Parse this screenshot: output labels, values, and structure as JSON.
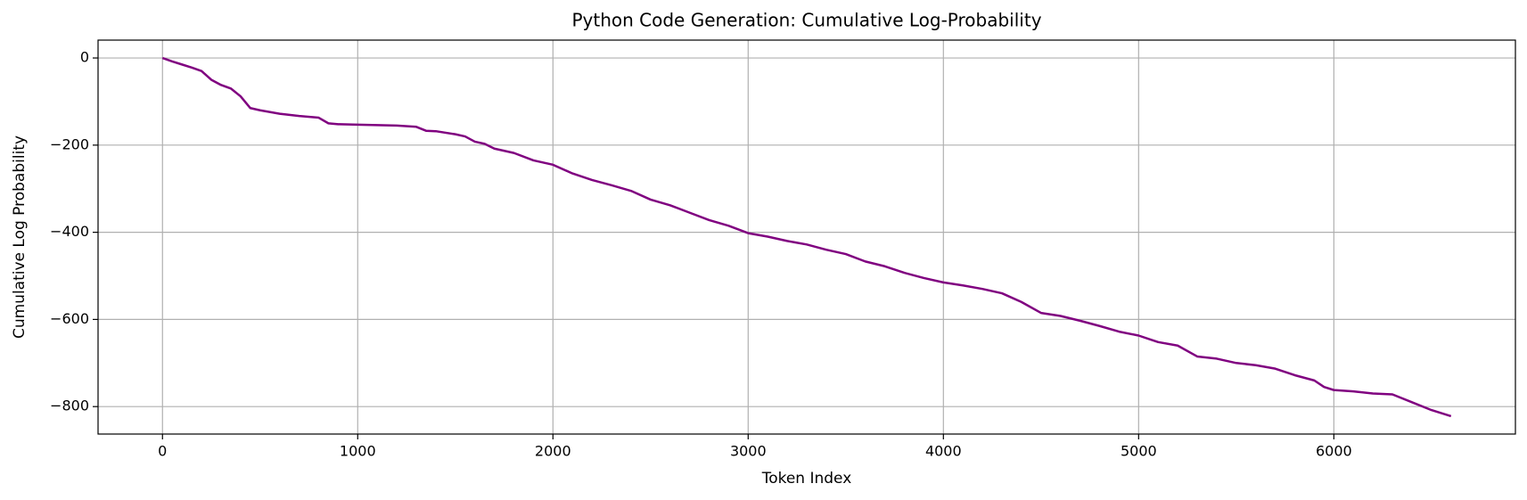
{
  "chart_data": {
    "type": "line",
    "title": "Python Code Generation: Cumulative Log-Probability",
    "xlabel": "Token Index",
    "ylabel": "Cumulative Log Probability",
    "color": "#800080",
    "grid": true,
    "xlim": [
      -330,
      6930
    ],
    "xticks": [
      0,
      1000,
      2000,
      3000,
      4000,
      5000,
      6000
    ],
    "ylim": [
      -863,
      41
    ],
    "yticks": [
      {
        "value": -800,
        "label": "−800"
      },
      {
        "value": -600,
        "label": "−600"
      },
      {
        "value": -400,
        "label": "−400"
      },
      {
        "value": -200,
        "label": "−200"
      },
      0
    ],
    "x": [
      0,
      50,
      100,
      150,
      200,
      250,
      300,
      350,
      400,
      450,
      500,
      600,
      700,
      800,
      850,
      900,
      1000,
      1100,
      1200,
      1300,
      1350,
      1400,
      1500,
      1550,
      1600,
      1650,
      1700,
      1800,
      1900,
      2000,
      2100,
      2200,
      2300,
      2400,
      2500,
      2600,
      2700,
      2800,
      2900,
      3000,
      3100,
      3200,
      3300,
      3400,
      3500,
      3600,
      3700,
      3800,
      3900,
      4000,
      4100,
      4200,
      4300,
      4400,
      4500,
      4600,
      4700,
      4800,
      4900,
      5000,
      5100,
      5200,
      5300,
      5400,
      5500,
      5600,
      5700,
      5800,
      5900,
      5950,
      6000,
      6100,
      6200,
      6300,
      6400,
      6500,
      6600
    ],
    "values": [
      0,
      -8,
      -15,
      -22,
      -30,
      -50,
      -62,
      -70,
      -88,
      -115,
      -120,
      -128,
      -133,
      -137,
      -150,
      -152,
      -153,
      -154,
      -155,
      -158,
      -167,
      -168,
      -175,
      -180,
      -192,
      -197,
      -208,
      -218,
      -235,
      -245,
      -265,
      -280,
      -292,
      -305,
      -325,
      -338,
      -355,
      -372,
      -385,
      -402,
      -410,
      -420,
      -428,
      -440,
      -450,
      -467,
      -478,
      -493,
      -505,
      -515,
      -522,
      -530,
      -540,
      -560,
      -585,
      -592,
      -603,
      -615,
      -628,
      -637,
      -652,
      -660,
      -685,
      -690,
      -700,
      -705,
      -713,
      -728,
      -740,
      -755,
      -762,
      -765,
      -770,
      -772,
      -790,
      -808,
      -822
    ]
  }
}
